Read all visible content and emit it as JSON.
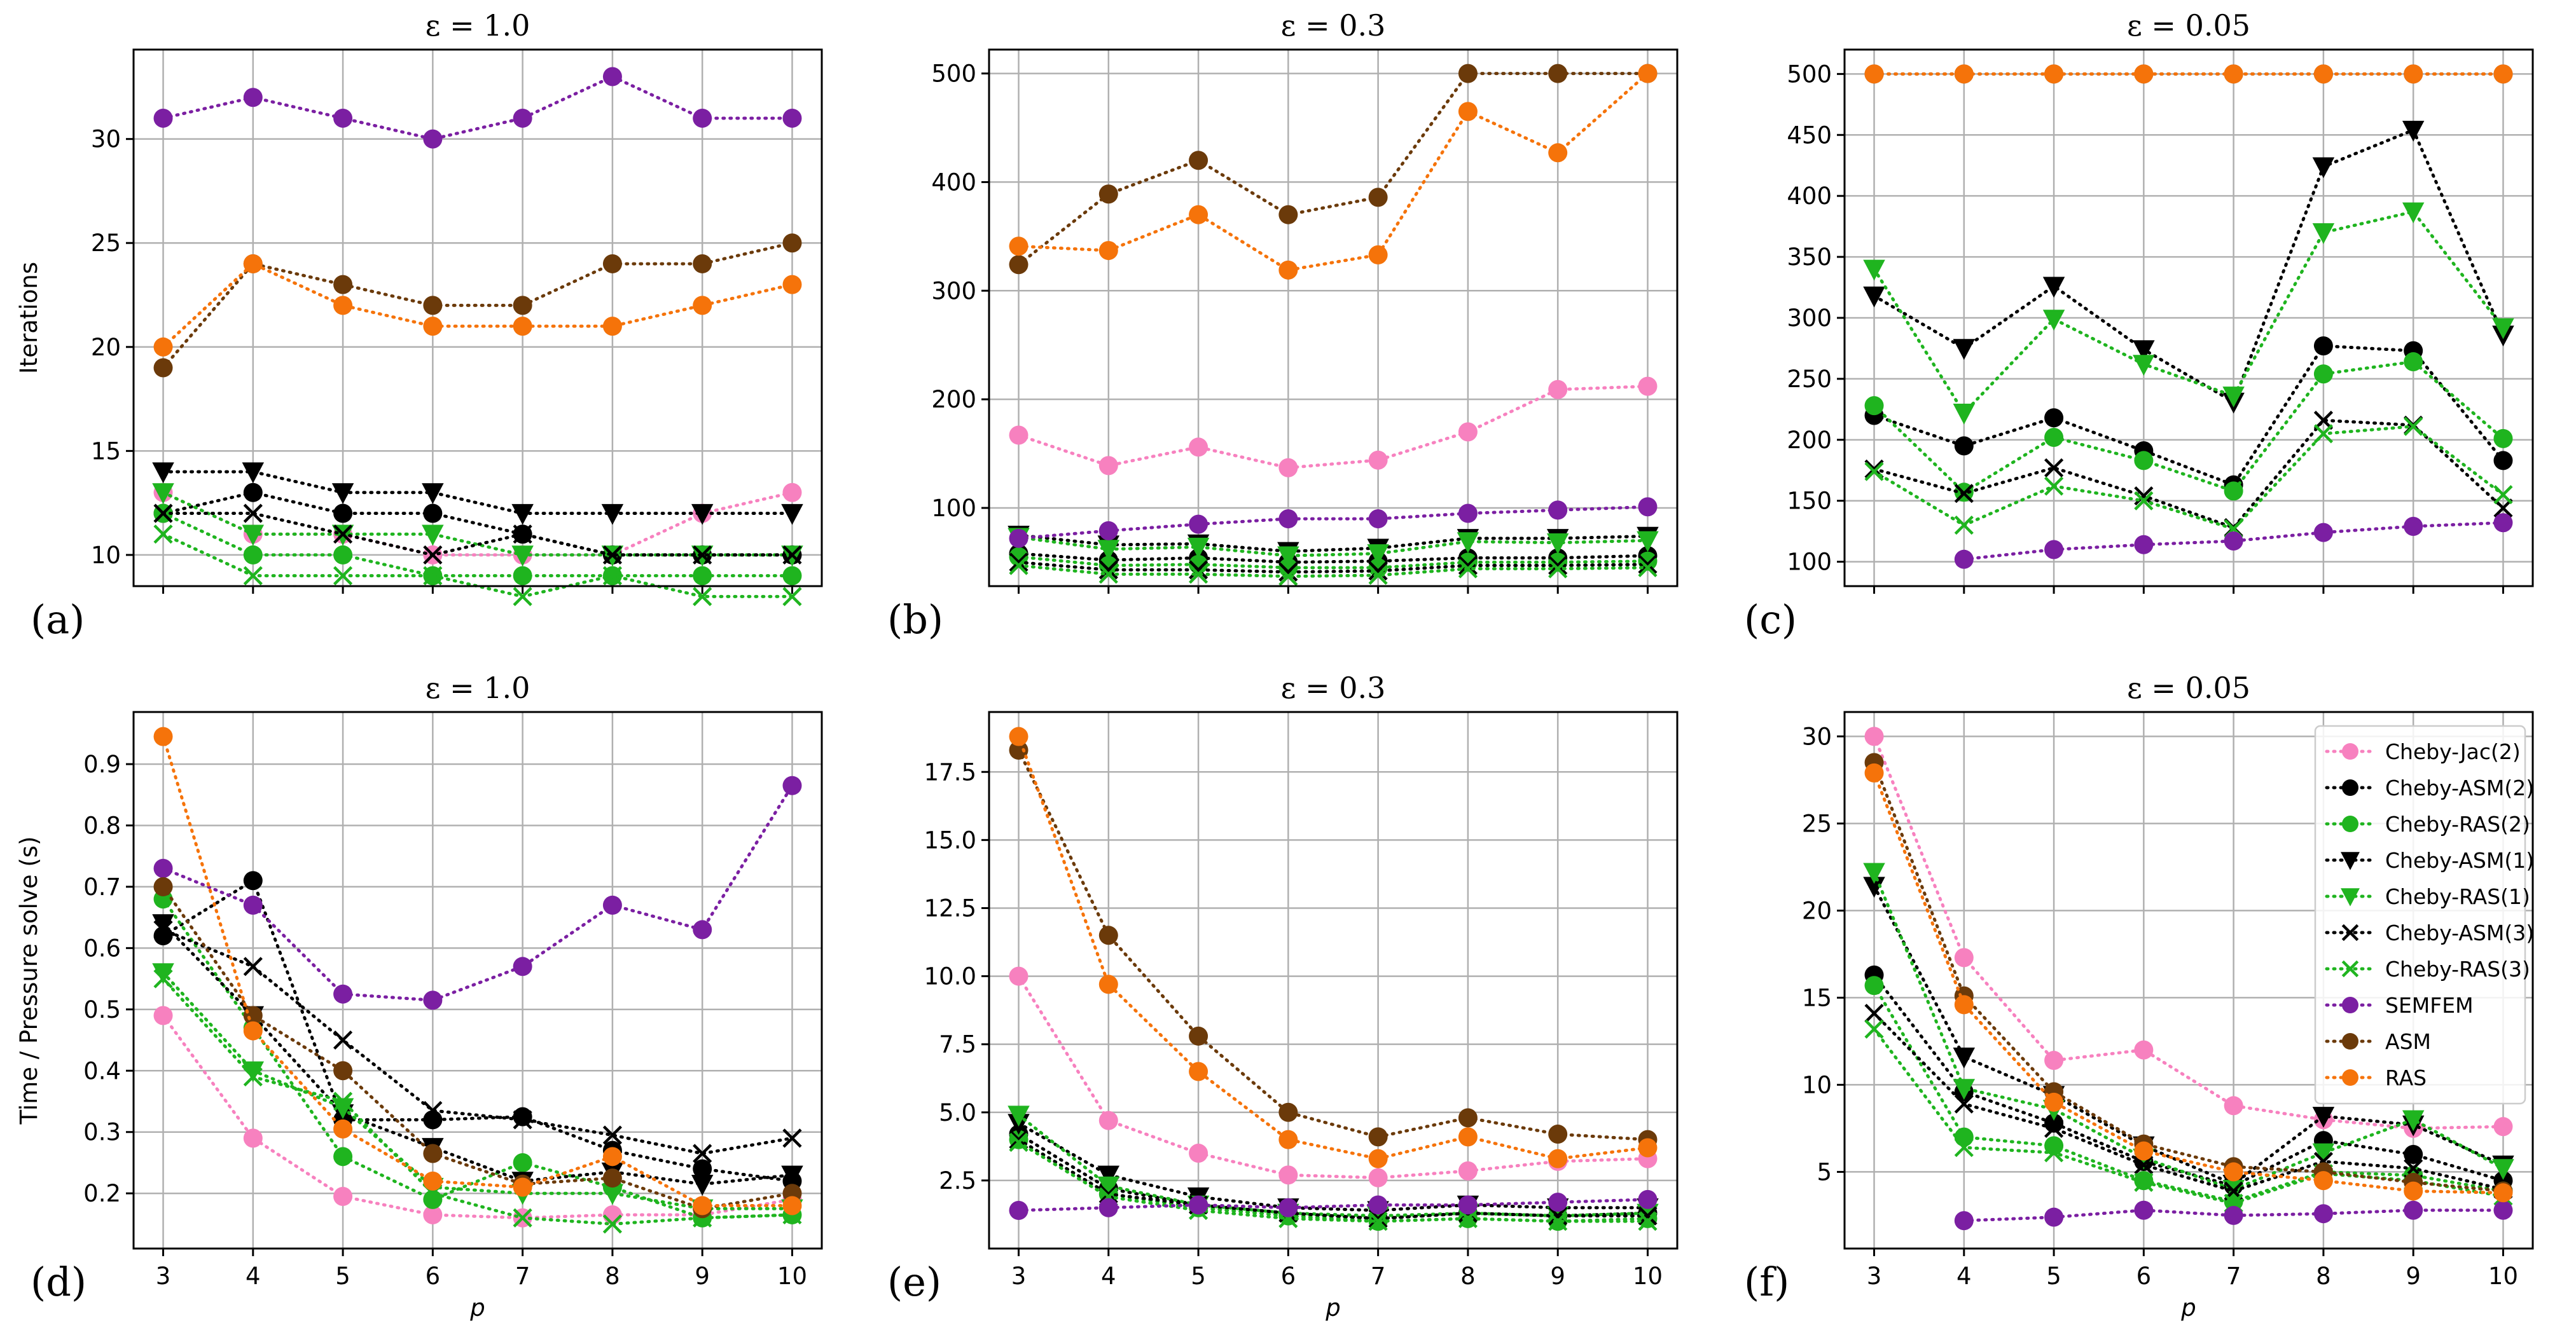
{
  "chart_data": [
    {
      "type": "line",
      "title": "ε = 1.0",
      "panel_label": "(a)",
      "ylabel": "Iterations",
      "xlabel": "",
      "x": [
        3,
        4,
        5,
        6,
        7,
        8,
        9,
        10
      ],
      "ylim": [
        8.5,
        34.3
      ],
      "yticks": [
        10,
        15,
        20,
        25,
        30
      ],
      "grid": true,
      "series": [
        {
          "name": "Cheby-Jac(2)",
          "values": [
            13,
            11,
            11,
            10,
            10,
            10,
            12,
            13
          ]
        },
        {
          "name": "Cheby-ASM(2)",
          "values": [
            12,
            13,
            12,
            12,
            11,
            10,
            10,
            10
          ]
        },
        {
          "name": "Cheby-RAS(2)",
          "values": [
            12,
            10,
            10,
            9,
            9,
            9,
            9,
            9
          ]
        },
        {
          "name": "Cheby-ASM(1)",
          "values": [
            14,
            14,
            13,
            13,
            12,
            12,
            12,
            12
          ]
        },
        {
          "name": "Cheby-RAS(1)",
          "values": [
            13,
            11,
            11,
            11,
            10,
            10,
            10,
            10
          ]
        },
        {
          "name": "Cheby-ASM(3)",
          "values": [
            12,
            12,
            11,
            10,
            11,
            10,
            10,
            10
          ]
        },
        {
          "name": "Cheby-RAS(3)",
          "values": [
            11,
            9,
            9,
            9,
            8,
            9,
            8,
            8
          ]
        },
        {
          "name": "SEMFEM",
          "values": [
            31,
            32,
            31,
            30,
            31,
            33,
            31,
            31
          ]
        },
        {
          "name": "ASM",
          "values": [
            19,
            24,
            23,
            22,
            22,
            24,
            24,
            25
          ]
        },
        {
          "name": "RAS",
          "values": [
            20,
            24,
            22,
            21,
            21,
            21,
            22,
            23
          ]
        }
      ]
    },
    {
      "type": "line",
      "title": "ε = 0.3",
      "panel_label": "(b)",
      "ylabel": "",
      "xlabel": "",
      "x": [
        3,
        4,
        5,
        6,
        7,
        8,
        9,
        10
      ],
      "ylim": [
        28,
        522
      ],
      "yticks": [
        100,
        200,
        300,
        400,
        500
      ],
      "grid": true,
      "series": [
        {
          "name": "Cheby-Jac(2)",
          "values": [
            167,
            139,
            156,
            137,
            144,
            170,
            209,
            212
          ]
        },
        {
          "name": "Cheby-ASM(2)",
          "values": [
            58,
            52,
            54,
            50,
            51,
            54,
            54,
            56
          ]
        },
        {
          "name": "Cheby-RAS(2)",
          "values": [
            55,
            47,
            48,
            45,
            45,
            50,
            50,
            51
          ]
        },
        {
          "name": "Cheby-ASM(1)",
          "values": [
            75,
            66,
            67,
            60,
            63,
            72,
            72,
            74
          ]
        },
        {
          "name": "Cheby-RAS(1)",
          "values": [
            73,
            62,
            64,
            56,
            58,
            69,
            68,
            70
          ]
        },
        {
          "name": "Cheby-ASM(3)",
          "values": [
            50,
            43,
            43,
            41,
            42,
            47,
            47,
            48
          ]
        },
        {
          "name": "Cheby-RAS(3)",
          "values": [
            47,
            39,
            39,
            37,
            38,
            44,
            44,
            45
          ]
        },
        {
          "name": "SEMFEM",
          "values": [
            72,
            79,
            85,
            90,
            90,
            95,
            98,
            101
          ]
        },
        {
          "name": "ASM",
          "values": [
            324,
            389,
            420,
            370,
            386,
            500,
            500,
            500
          ]
        },
        {
          "name": "RAS",
          "values": [
            341,
            337,
            370,
            319,
            333,
            465,
            427,
            500
          ]
        }
      ]
    },
    {
      "type": "line",
      "title": "ε = 0.05",
      "panel_label": "(c)",
      "ylabel": "",
      "xlabel": "",
      "x": [
        3,
        4,
        5,
        6,
        7,
        8,
        9,
        10
      ],
      "ylim": [
        80,
        520
      ],
      "yticks": [
        100,
        150,
        200,
        250,
        300,
        350,
        400,
        450,
        500
      ],
      "grid": true,
      "series": [
        {
          "name": "Cheby-Jac(2)",
          "values": [
            null,
            null,
            null,
            null,
            null,
            null,
            null,
            null
          ]
        },
        {
          "name": "Cheby-ASM(2)",
          "values": [
            220,
            195,
            218,
            191,
            163,
            277,
            273,
            183
          ]
        },
        {
          "name": "Cheby-RAS(2)",
          "values": [
            228,
            157,
            202,
            183,
            158,
            254,
            264,
            201
          ]
        },
        {
          "name": "Cheby-ASM(1)",
          "values": [
            318,
            275,
            326,
            274,
            231,
            424,
            454,
            286
          ]
        },
        {
          "name": "Cheby-RAS(1)",
          "values": [
            340,
            222,
            299,
            262,
            236,
            370,
            387,
            292
          ]
        },
        {
          "name": "Cheby-ASM(3)",
          "values": [
            176,
            156,
            177,
            154,
            128,
            216,
            212,
            144
          ]
        },
        {
          "name": "Cheby-RAS(3)",
          "values": [
            174,
            130,
            162,
            150,
            127,
            205,
            211,
            155
          ]
        },
        {
          "name": "SEMFEM",
          "values": [
            null,
            102,
            110,
            114,
            117,
            124,
            129,
            132
          ]
        },
        {
          "name": "ASM",
          "values": [
            500,
            500,
            500,
            500,
            500,
            500,
            500,
            500
          ]
        },
        {
          "name": "RAS",
          "values": [
            500,
            500,
            500,
            500,
            500,
            500,
            500,
            500
          ]
        }
      ]
    },
    {
      "type": "line",
      "title": "ε = 1.0",
      "panel_label": "(d)",
      "ylabel": "Time / Pressure solve (s)",
      "xlabel": "p",
      "x": [
        3,
        4,
        5,
        6,
        7,
        8,
        9,
        10
      ],
      "ylim": [
        0.11,
        0.985
      ],
      "yticks": [
        0.2,
        0.3,
        0.4,
        0.5,
        0.6,
        0.7,
        0.8,
        0.9
      ],
      "xticks": [
        "3",
        "4",
        "5",
        "6",
        "7",
        "8",
        "9",
        "10"
      ],
      "grid": true,
      "series": [
        {
          "name": "Cheby-Jac(2)",
          "values": [
            0.49,
            0.29,
            0.195,
            0.165,
            0.16,
            0.165,
            0.165,
            0.19
          ]
        },
        {
          "name": "Cheby-ASM(2)",
          "values": [
            0.62,
            0.71,
            0.32,
            0.32,
            0.325,
            0.27,
            0.24,
            0.22
          ]
        },
        {
          "name": "Cheby-RAS(2)",
          "values": [
            0.68,
            0.47,
            0.26,
            0.19,
            0.25,
            0.21,
            0.16,
            0.165
          ]
        },
        {
          "name": "Cheby-ASM(1)",
          "values": [
            0.64,
            0.49,
            0.33,
            0.275,
            0.22,
            0.235,
            0.215,
            0.23
          ]
        },
        {
          "name": "Cheby-RAS(1)",
          "values": [
            0.56,
            0.4,
            0.34,
            0.21,
            0.2,
            0.2,
            0.175,
            0.175
          ]
        },
        {
          "name": "Cheby-ASM(3)",
          "values": [
            0.63,
            0.57,
            0.45,
            0.335,
            0.32,
            0.295,
            0.265,
            0.29
          ]
        },
        {
          "name": "Cheby-RAS(3)",
          "values": [
            0.55,
            0.39,
            0.35,
            0.2,
            0.16,
            0.15,
            0.16,
            0.165
          ]
        },
        {
          "name": "SEMFEM",
          "values": [
            0.73,
            0.67,
            0.525,
            0.515,
            0.57,
            0.67,
            0.63,
            0.865
          ]
        },
        {
          "name": "ASM",
          "values": [
            0.7,
            0.49,
            0.4,
            0.265,
            0.215,
            0.225,
            0.175,
            0.2
          ]
        },
        {
          "name": "RAS",
          "values": [
            0.945,
            0.465,
            0.305,
            0.22,
            0.21,
            0.26,
            0.18,
            0.18
          ]
        }
      ]
    },
    {
      "type": "line",
      "title": "ε = 0.3",
      "panel_label": "(e)",
      "ylabel": "",
      "xlabel": "p",
      "x": [
        3,
        4,
        5,
        6,
        7,
        8,
        9,
        10
      ],
      "ylim": [
        0,
        19.7
      ],
      "yticks": [
        2.5,
        5.0,
        7.5,
        10.0,
        12.5,
        15.0,
        17.5
      ],
      "ytick_labels": [
        "2.5",
        "5.0",
        "7.5",
        "10.0",
        "12.5",
        "15.0",
        "17.5"
      ],
      "xticks": [
        "3",
        "4",
        "5",
        "6",
        "7",
        "8",
        "9",
        "10"
      ],
      "grid": true,
      "series": [
        {
          "name": "Cheby-Jac(2)",
          "values": [
            10.0,
            4.7,
            3.5,
            2.7,
            2.6,
            2.85,
            3.2,
            3.3
          ]
        },
        {
          "name": "Cheby-ASM(2)",
          "values": [
            4.2,
            2.2,
            1.6,
            1.3,
            1.1,
            1.3,
            1.2,
            1.3
          ]
        },
        {
          "name": "Cheby-RAS(2)",
          "values": [
            4.0,
            2.0,
            1.5,
            1.2,
            1.0,
            1.1,
            1.0,
            1.1
          ]
        },
        {
          "name": "Cheby-ASM(1)",
          "values": [
            4.6,
            2.7,
            1.9,
            1.5,
            1.4,
            1.6,
            1.5,
            1.5
          ]
        },
        {
          "name": "Cheby-RAS(1)",
          "values": [
            4.9,
            2.3,
            1.6,
            1.3,
            1.2,
            1.3,
            1.2,
            1.3
          ]
        },
        {
          "name": "Cheby-ASM(3)",
          "values": [
            4.0,
            2.0,
            1.6,
            1.3,
            1.1,
            1.3,
            1.2,
            1.2
          ]
        },
        {
          "name": "Cheby-RAS(3)",
          "values": [
            3.9,
            1.9,
            1.4,
            1.1,
            1.0,
            1.1,
            1.0,
            1.0
          ]
        },
        {
          "name": "SEMFEM",
          "values": [
            1.4,
            1.5,
            1.6,
            1.5,
            1.6,
            1.6,
            1.7,
            1.8
          ]
        },
        {
          "name": "ASM",
          "values": [
            18.3,
            11.5,
            7.8,
            5.0,
            4.1,
            4.8,
            4.2,
            4.0
          ]
        },
        {
          "name": "RAS",
          "values": [
            18.8,
            9.7,
            6.5,
            4.0,
            3.3,
            4.1,
            3.3,
            3.7
          ]
        }
      ]
    },
    {
      "type": "line",
      "title": "ε = 0.05",
      "panel_label": "(f)",
      "ylabel": "",
      "xlabel": "p",
      "x": [
        3,
        4,
        5,
        6,
        7,
        8,
        9,
        10
      ],
      "ylim": [
        0.6,
        31.4
      ],
      "yticks": [
        5,
        10,
        15,
        20,
        25,
        30
      ],
      "xticks": [
        "3",
        "4",
        "5",
        "6",
        "7",
        "8",
        "9",
        "10"
      ],
      "grid": true,
      "legend_position": "upper right",
      "series": [
        {
          "name": "Cheby-Jac(2)",
          "values": [
            30.0,
            17.3,
            11.4,
            12.0,
            8.8,
            8.0,
            7.5,
            7.6
          ]
        },
        {
          "name": "Cheby-ASM(2)",
          "values": [
            16.3,
            9.6,
            7.8,
            5.6,
            4.2,
            6.8,
            6.0,
            4.5
          ]
        },
        {
          "name": "Cheby-RAS(2)",
          "values": [
            15.7,
            7.0,
            6.5,
            4.5,
            3.3,
            5.0,
            4.8,
            3.9
          ]
        },
        {
          "name": "Cheby-ASM(1)",
          "values": [
            21.4,
            11.6,
            9.4,
            6.5,
            4.3,
            8.2,
            7.7,
            5.4
          ]
        },
        {
          "name": "Cheby-RAS(1)",
          "values": [
            22.2,
            9.8,
            8.6,
            5.8,
            4.0,
            6.1,
            8.0,
            5.2
          ]
        },
        {
          "name": "Cheby-ASM(3)",
          "values": [
            14.1,
            8.9,
            7.5,
            5.4,
            3.9,
            5.6,
            5.2,
            4.0
          ]
        },
        {
          "name": "Cheby-RAS(3)",
          "values": [
            13.2,
            6.4,
            6.1,
            4.4,
            3.2,
            4.9,
            4.5,
            3.6
          ]
        },
        {
          "name": "SEMFEM",
          "values": [
            null,
            2.2,
            2.4,
            2.8,
            2.5,
            2.6,
            2.8,
            2.8
          ]
        },
        {
          "name": "ASM",
          "values": [
            28.5,
            15.1,
            9.6,
            6.6,
            5.3,
            5.0,
            4.4,
            3.9
          ]
        },
        {
          "name": "RAS",
          "values": [
            27.9,
            14.6,
            9.0,
            6.2,
            5.0,
            4.5,
            3.9,
            3.8
          ]
        }
      ]
    }
  ],
  "legend": [
    {
      "name": "Cheby-Jac(2)",
      "color": "#f781bf",
      "marker": "circle"
    },
    {
      "name": "Cheby-ASM(2)",
      "color": "#000000",
      "marker": "circle"
    },
    {
      "name": "Cheby-RAS(2)",
      "color": "#1fb41f",
      "marker": "circle"
    },
    {
      "name": "Cheby-ASM(1)",
      "color": "#000000",
      "marker": "triangle-down"
    },
    {
      "name": "Cheby-RAS(1)",
      "color": "#1fb41f",
      "marker": "triangle-down"
    },
    {
      "name": "Cheby-ASM(3)",
      "color": "#000000",
      "marker": "x"
    },
    {
      "name": "Cheby-RAS(3)",
      "color": "#1fb41f",
      "marker": "x"
    },
    {
      "name": "SEMFEM",
      "color": "#7b1fa2",
      "marker": "circle"
    },
    {
      "name": "ASM",
      "color": "#6b3a0a",
      "marker": "circle"
    },
    {
      "name": "RAS",
      "color": "#f5730a",
      "marker": "circle"
    }
  ]
}
